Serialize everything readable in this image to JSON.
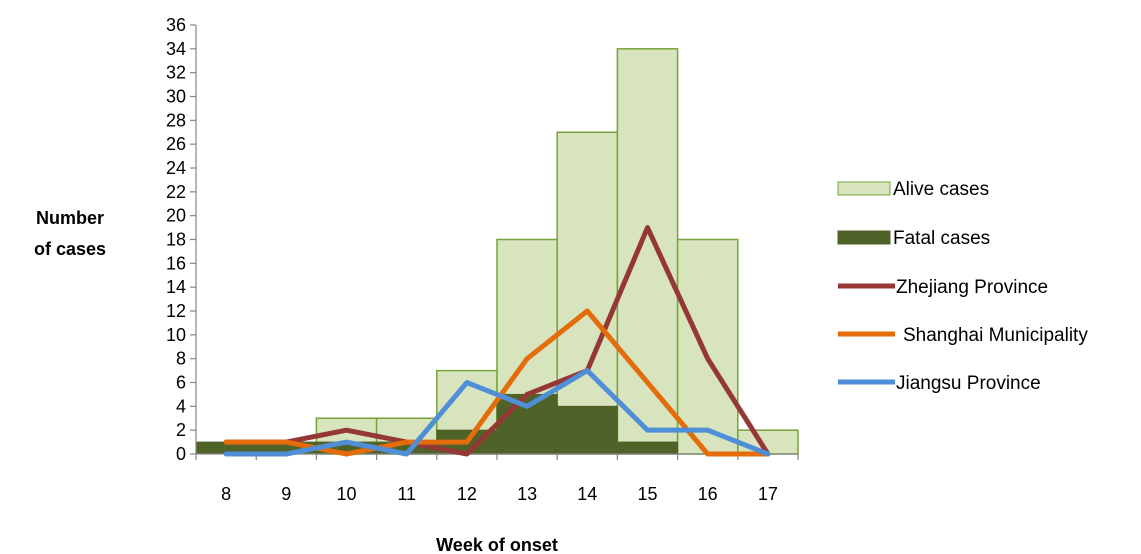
{
  "chart_data": {
    "type": "bar",
    "title": "",
    "xlabel": "Week of onset",
    "ylabel_lines": [
      "Number",
      "of cases"
    ],
    "categories": [
      "8",
      "9",
      "10",
      "11",
      "12",
      "13",
      "14",
      "15",
      "16",
      "17"
    ],
    "ylim": [
      0,
      36
    ],
    "ytick_step": 2,
    "grid": false,
    "legend_position": "right",
    "bar_series": [
      {
        "name": "Alive cases",
        "color": "#d7e4bd",
        "edge": "#77a33a",
        "values": [
          0,
          0,
          3,
          3,
          7,
          18,
          27,
          34,
          18,
          2
        ]
      },
      {
        "name": "Fatal cases",
        "color": "#4f6228",
        "edge": "#4f6228",
        "values": [
          1,
          1,
          1,
          1,
          2,
          5,
          4,
          1,
          0,
          0
        ]
      }
    ],
    "line_series": [
      {
        "name": "Zhejiang Province",
        "color": "#953735",
        "values": [
          1,
          1,
          2,
          1,
          0,
          5,
          7,
          19,
          8,
          0
        ]
      },
      {
        "name": "Shanghai Municipality",
        "color": "#e46c0a",
        "values": [
          1,
          1,
          0,
          1,
          1,
          8,
          12,
          6,
          0,
          0
        ]
      },
      {
        "name": "Jiangsu Province",
        "color": "#4f8fd8",
        "values": [
          0,
          0,
          1,
          0,
          6,
          4,
          7,
          2,
          2,
          0
        ]
      }
    ],
    "legend": [
      {
        "label": "Alive cases",
        "kind": "bar",
        "ref": "Alive cases"
      },
      {
        "label": "Fatal cases",
        "kind": "bar",
        "ref": "Fatal cases"
      },
      {
        "label": "Zhejiang Province",
        "kind": "line",
        "ref": "Zhejiang Province"
      },
      {
        "label": "Shanghai Municipality",
        "kind": "line",
        "ref": "Shanghai Municipality"
      },
      {
        "label": "Jiangsu Province",
        "kind": "line",
        "ref": "Jiangsu Province"
      }
    ]
  }
}
